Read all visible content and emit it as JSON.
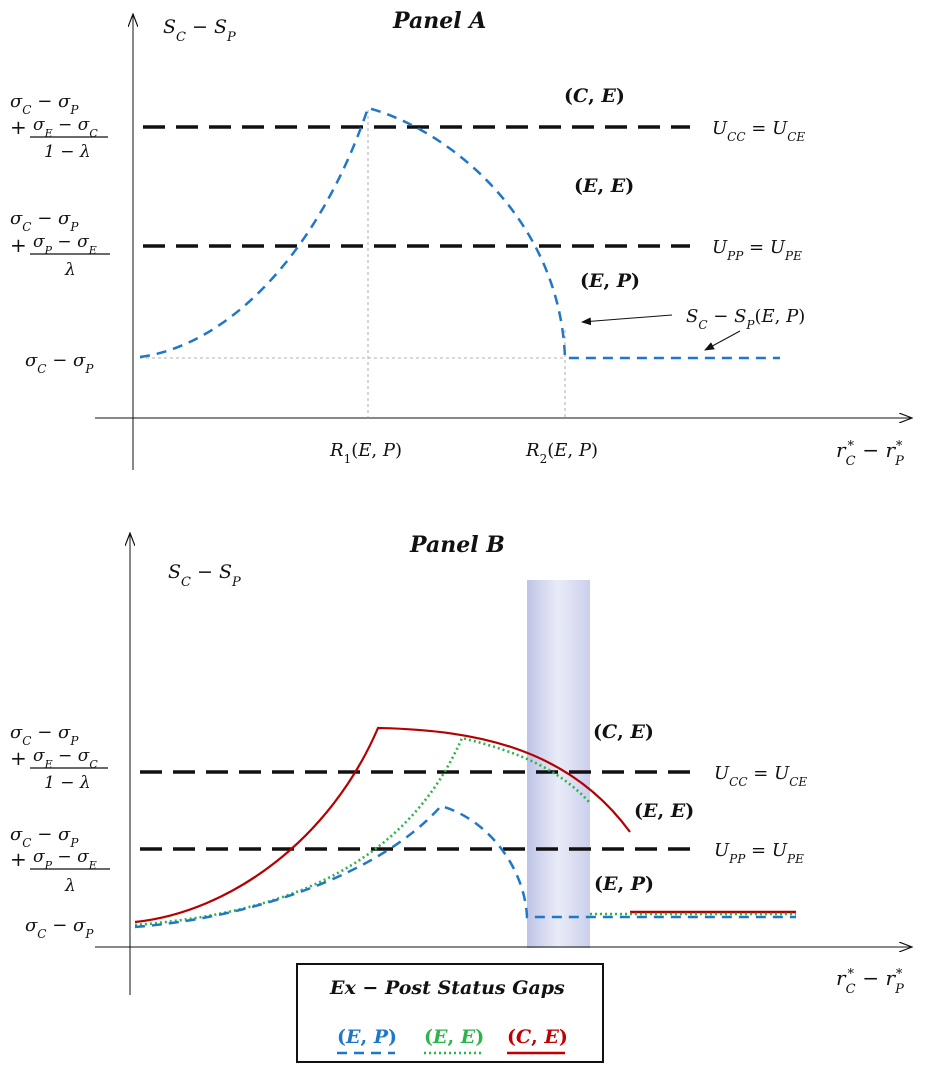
{
  "panel_a": {
    "title": "Panel A",
    "y_axis_label": "S_C − S_P",
    "x_axis_label": "r_C^* − r_P^*",
    "y_tick_1": "σ_C − σ_P",
    "y_tick_2_line1": "σ_C − σ_P",
    "y_tick_2_frac_num": "σ_P − σ_E",
    "y_tick_2_frac_den": "λ",
    "y_tick_3_line1": "σ_C − σ_P",
    "y_tick_3_frac_num": "σ_E − σ_C",
    "y_tick_3_frac_den": "1 − λ",
    "x_tick_1": "R_1(E, P)",
    "x_tick_2": "R_2(E, P)",
    "line_upper_label": "U_CC = U_CE",
    "line_lower_label": "U_PP = U_PE",
    "region_ce": "(C, E)",
    "region_ee": "(E, E)",
    "region_ep": "(E, P)",
    "curve_annotation": "S_C − S_P(E, P)"
  },
  "panel_b": {
    "title": "Panel B",
    "y_axis_label": "S_C − S_P",
    "x_axis_label": "r_C^* − r_P^*",
    "y_tick_1": "σ_C − σ_P",
    "line_upper_label": "U_CC = U_CE",
    "line_lower_label": "U_PP = U_PE",
    "region_ce": "(C, E)",
    "region_ee": "(E, E)",
    "region_ep": "(E, P)"
  },
  "legend": {
    "title": "Ex − Post Status Gaps",
    "items": [
      {
        "label": "(E, P)",
        "color": "#1f77c9",
        "style": "dashed"
      },
      {
        "label": "(E, E)",
        "color": "#2db34a",
        "style": "dotted"
      },
      {
        "label": "(C, E)",
        "color": "#c00000",
        "style": "solid"
      }
    ]
  },
  "colors": {
    "ep": "#1f77c9",
    "ee": "#2db34a",
    "ce": "#b30000",
    "band": "#c8cdea"
  }
}
